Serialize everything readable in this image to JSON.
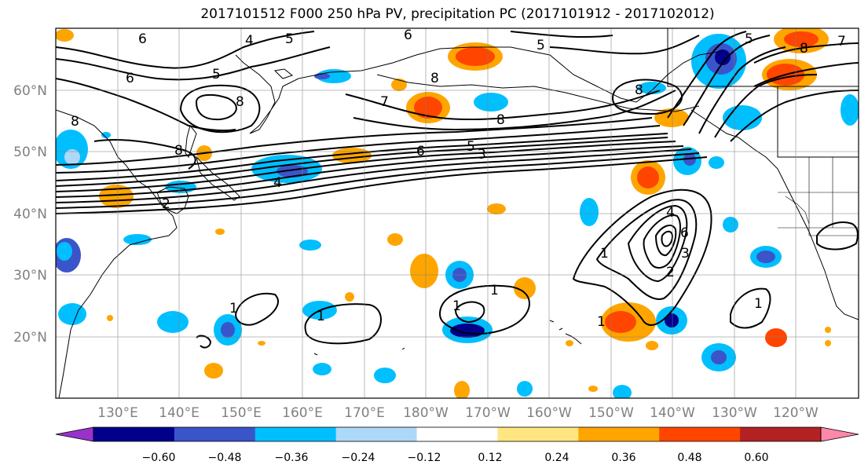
{
  "title": "2017101512 F000 250 hPa PV, precipitation PC (2017101912 - 2017102012)",
  "lat_labels": [
    "60°N",
    "50°N",
    "40°N",
    "30°N",
    "20°N"
  ],
  "lon_labels": [
    "130°E",
    "140°E",
    "150°E",
    "160°E",
    "170°E",
    "180°W",
    "170°W",
    "160°W",
    "150°W",
    "140°W",
    "130°W",
    "120°W"
  ],
  "colorbar": {
    "ticks": [
      "−0.60",
      "−0.48",
      "−0.36",
      "−0.24",
      "−0.12",
      "0.12",
      "0.24",
      "0.36",
      "0.48",
      "0.60"
    ],
    "colors": [
      "#9932cc",
      "#00008b",
      "#3a55c9",
      "#00bfff",
      "#add8f8",
      "#ffffff",
      "#ffe680",
      "#ffa500",
      "#ff4500",
      "#b22222",
      "#ff88aa"
    ]
  },
  "contour_labels": [
    "6",
    "4",
    "5",
    "6",
    "8",
    "5",
    "6",
    "5",
    "8",
    "8",
    "8",
    "7",
    "8",
    "6",
    "5",
    "3",
    "4",
    "2",
    "1",
    "1",
    "1",
    "1",
    "2",
    "3",
    "4",
    "6",
    "1",
    "1",
    "1",
    "8",
    "5",
    "8",
    "7"
  ]
}
